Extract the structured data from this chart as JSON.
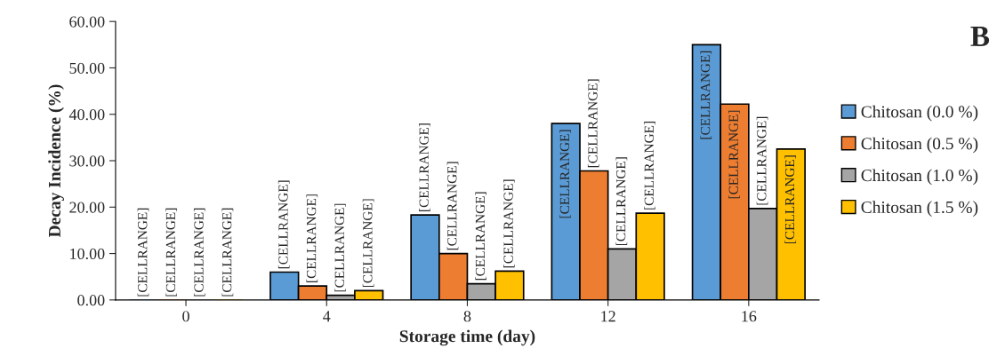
{
  "chart_data": {
    "type": "bar",
    "title": "B",
    "xlabel": "Storage time (day)",
    "ylabel": "Decay Incidence (%)",
    "categories": [
      "0",
      "4",
      "8",
      "12",
      "16"
    ],
    "series": [
      {
        "name": "Chitosan (0.0 %)",
        "color": "#5b9bd5",
        "values": [
          0,
          6.0,
          18.3,
          38.0,
          55.0
        ],
        "value_labels": [
          "[CELLRANGE]",
          "[CELLRANGE]",
          "[CELLRANGE]",
          "[CELLRANGE]",
          "[CELLRANGE]"
        ]
      },
      {
        "name": "Chitosan (0.5 %)",
        "color": "#ed7d31",
        "values": [
          0,
          3.0,
          10.0,
          27.8,
          42.2
        ],
        "value_labels": [
          "[CELLRANGE]",
          "[CELLRANGE]",
          "[CELLRANGE]",
          "[CELLRANGE]",
          "[CELLRANGE]"
        ]
      },
      {
        "name": "Chitosan (1.0 %)",
        "color": "#a5a5a5",
        "values": [
          0,
          1.0,
          3.5,
          11.0,
          19.7
        ],
        "value_labels": [
          "[CELLRANGE]",
          "[CELLRANGE]",
          "[CELLRANGE]",
          "[CELLRANGE]",
          "[CELLRANGE]"
        ]
      },
      {
        "name": "Chitosan (1.5 %)",
        "color": "#ffc000",
        "values": [
          0,
          2.0,
          6.2,
          18.7,
          32.5
        ],
        "value_labels": [
          "[CELLRANGE]",
          "[CELLRANGE]",
          "[CELLRANGE]",
          "[CELLRANGE]",
          "[CELLRANGE]"
        ]
      }
    ],
    "ylim": [
      0,
      60
    ],
    "yticks": [
      {
        "value": 0,
        "label": "0.00"
      },
      {
        "value": 10,
        "label": "10.00"
      },
      {
        "value": 20,
        "label": "20.00"
      },
      {
        "value": 30,
        "label": "30.00"
      },
      {
        "value": 40,
        "label": "40.00"
      },
      {
        "value": 50,
        "label": "50.00"
      },
      {
        "value": 60,
        "label": "60.00"
      }
    ],
    "grid": false,
    "legend": "right"
  }
}
